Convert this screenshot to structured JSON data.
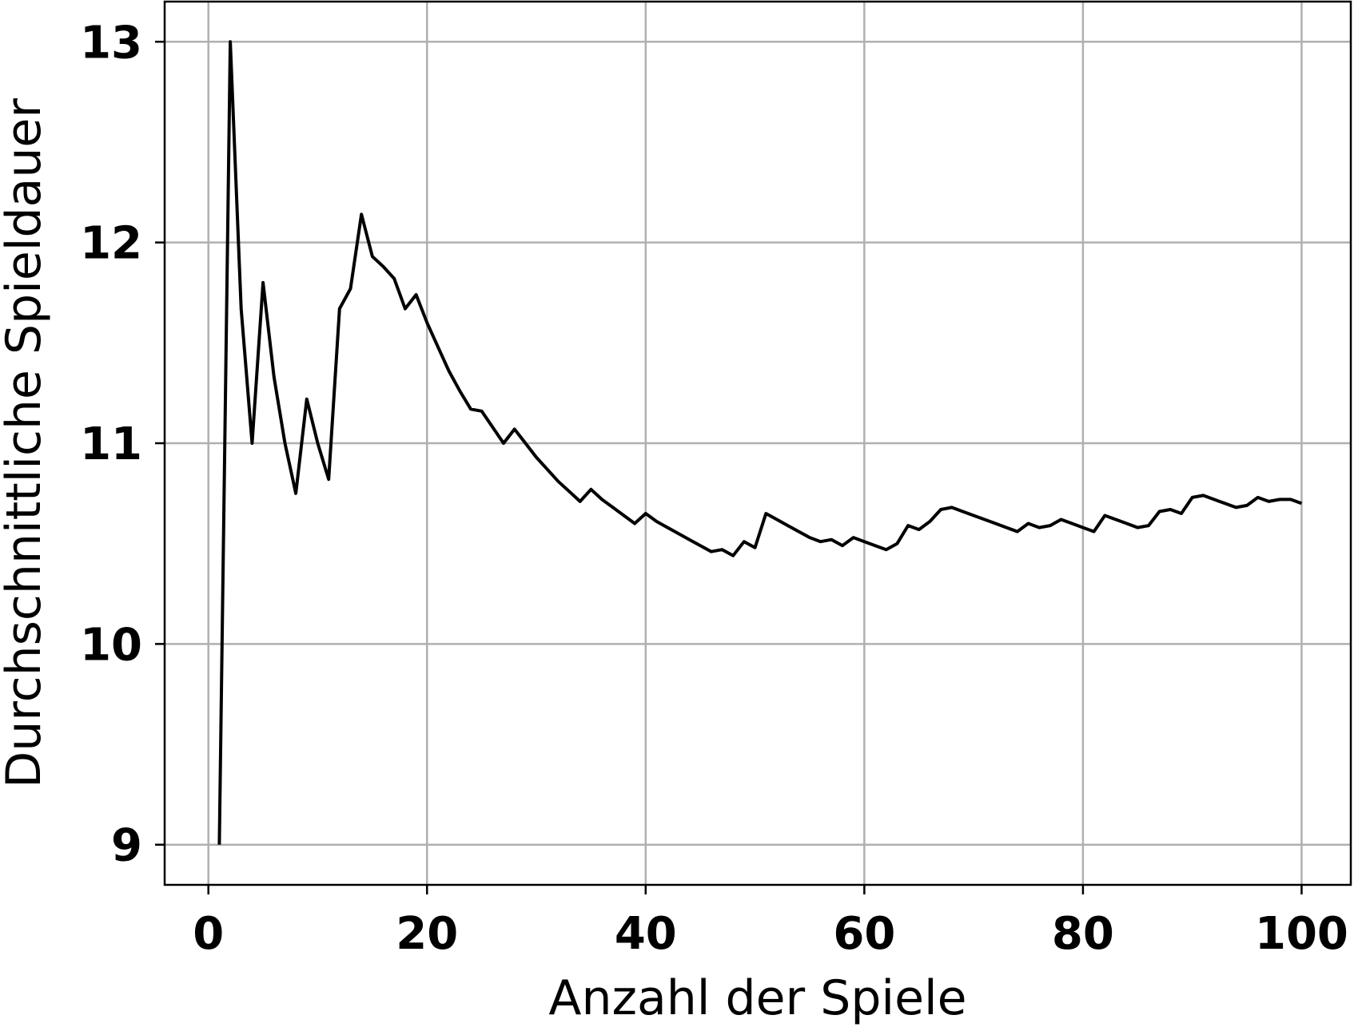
{
  "chart_data": {
    "type": "line",
    "xlabel": "Anzahl der Spiele",
    "ylabel": "Durchschnittliche Spieldauer",
    "xlim": [
      -4,
      104.5
    ],
    "ylim": [
      8.8,
      13.2
    ],
    "xticks": [
      0,
      20,
      40,
      60,
      80,
      100
    ],
    "yticks": [
      9,
      10,
      11,
      12,
      13
    ],
    "xtick_labels": [
      "0",
      "20",
      "40",
      "60",
      "80",
      "100"
    ],
    "ytick_labels": [
      "9",
      "10",
      "11",
      "12",
      "13"
    ],
    "grid": true,
    "line_color": "#000000",
    "series": [
      {
        "x": [
          1,
          2,
          3,
          4,
          5,
          6,
          7,
          8,
          9,
          10,
          11,
          12,
          13,
          14,
          15,
          16,
          17,
          18,
          19,
          20,
          21,
          22,
          23,
          24,
          25,
          26,
          27,
          28,
          29,
          30,
          31,
          32,
          33,
          34,
          35,
          36,
          37,
          38,
          39,
          40,
          41,
          42,
          43,
          44,
          45,
          46,
          47,
          48,
          49,
          50,
          51,
          52,
          53,
          54,
          55,
          56,
          57,
          58,
          59,
          60,
          61,
          62,
          63,
          64,
          65,
          66,
          67,
          68,
          69,
          70,
          71,
          72,
          73,
          74,
          75,
          76,
          77,
          78,
          79,
          80,
          81,
          82,
          83,
          84,
          85,
          86,
          87,
          88,
          89,
          90,
          91,
          92,
          93,
          94,
          95,
          96,
          97,
          98,
          99,
          100
        ],
        "y": [
          9.0,
          13.0,
          11.67,
          11.0,
          11.8,
          11.33,
          11.0,
          10.75,
          11.22,
          11.0,
          10.82,
          11.67,
          11.77,
          12.14,
          11.93,
          11.88,
          11.82,
          11.67,
          11.74,
          11.6,
          11.48,
          11.36,
          11.26,
          11.17,
          11.16,
          11.08,
          11.0,
          11.07,
          11.0,
          10.93,
          10.87,
          10.81,
          10.76,
          10.71,
          10.77,
          10.72,
          10.68,
          10.64,
          10.6,
          10.65,
          10.61,
          10.58,
          10.55,
          10.52,
          10.49,
          10.46,
          10.47,
          10.44,
          10.51,
          10.48,
          10.65,
          10.62,
          10.59,
          10.56,
          10.53,
          10.51,
          10.52,
          10.49,
          10.53,
          10.51,
          10.49,
          10.47,
          10.5,
          10.59,
          10.57,
          10.61,
          10.67,
          10.68,
          10.66,
          10.64,
          10.62,
          10.6,
          10.58,
          10.56,
          10.6,
          10.58,
          10.59,
          10.62,
          10.6,
          10.58,
          10.56,
          10.64,
          10.62,
          10.6,
          10.58,
          10.59,
          10.66,
          10.67,
          10.65,
          10.73,
          10.74,
          10.72,
          10.7,
          10.68,
          10.69,
          10.73,
          10.71,
          10.72,
          10.72,
          10.7
        ]
      }
    ]
  }
}
